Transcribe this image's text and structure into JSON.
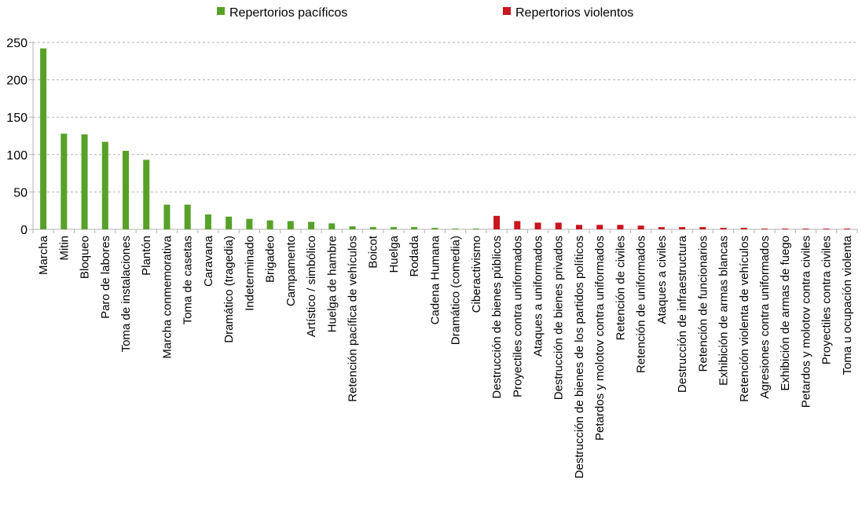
{
  "chart_data": {
    "type": "bar",
    "ylim": [
      0,
      250
    ],
    "yticks": [
      0,
      50,
      100,
      150,
      200,
      250
    ],
    "grid": true,
    "legend_position": "top",
    "series": [
      {
        "name": "Repertorios pacíficos",
        "color": "#57a128"
      },
      {
        "name": "Repertorios violentos",
        "color": "#c9151e"
      }
    ],
    "categories": [
      "Marcha",
      "Mitin",
      "Bloqueo",
      "Paro de labores",
      "Toma de instalaciones",
      "Plantón",
      "Marcha conmemorativa",
      "Toma de casetas",
      "Caravana",
      "Dramático (tragedia)",
      "Indeterminado",
      "Brigadeo",
      "Campamento",
      "Artístico / simbólico",
      "Huelga de hambre",
      "Retención pacífica de vehículos",
      "Boicot",
      "Huelga",
      "Rodada",
      "Cadena Humana",
      "Dramático (comedia)",
      "Ciberactivismo",
      "Destrucción de bienes públicos",
      "Proyectiles contra uniformados",
      "Ataques a uniformados",
      "Destrucción de bienes privados",
      "Destrucción de bienes de los partidos políticos",
      "Petardos y molotov contra uniformados",
      "Retención de civiles",
      "Retención de uniformados",
      "Ataques a civiles",
      "Destrucción de infraestructura",
      "Retención de funcionarios",
      "Exhibición de armas blancas",
      "Retención violenta de vehículos",
      "Agresiones contra uniformados",
      "Exhibición de armas de fuego",
      "Petardos y molotov contra civiles",
      "Proyectiles contra civiles",
      "Toma u ocupación violenta"
    ],
    "values": [
      242,
      128,
      127,
      117,
      105,
      93,
      33,
      33,
      20,
      17,
      14,
      12,
      11,
      10,
      8,
      4,
      3,
      3,
      3,
      2,
      1,
      1,
      18,
      11,
      9,
      9,
      6,
      6,
      6,
      5,
      3,
      3,
      3,
      2,
      2,
      1,
      1,
      1,
      1,
      1
    ],
    "bar_series": [
      0,
      0,
      0,
      0,
      0,
      0,
      0,
      0,
      0,
      0,
      0,
      0,
      0,
      0,
      0,
      0,
      0,
      0,
      0,
      0,
      0,
      0,
      1,
      1,
      1,
      1,
      1,
      1,
      1,
      1,
      1,
      1,
      1,
      1,
      1,
      1,
      1,
      1,
      1,
      1
    ]
  }
}
